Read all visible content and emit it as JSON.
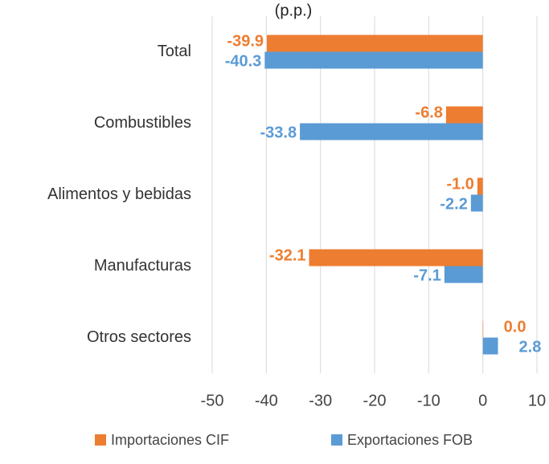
{
  "chart_data": {
    "type": "barh",
    "title": "(p.p.)",
    "categories": [
      "Total",
      "Combustibles",
      "Alimentos y bebidas",
      "Manufacturas",
      "Otros sectores"
    ],
    "series": [
      {
        "name": "Importaciones CIF",
        "color": "#ED7D31",
        "values": [
          -39.9,
          -6.8,
          -1.0,
          -32.1,
          0.0
        ],
        "value_labels": [
          "-39.9",
          "-6.8",
          "-1.0",
          "-32.1",
          "0.0"
        ]
      },
      {
        "name": "Exportaciones FOB",
        "color": "#5B9BD5",
        "values": [
          -40.3,
          -33.8,
          -2.2,
          -7.1,
          2.8
        ],
        "value_labels": [
          "-40.3",
          "-33.8",
          "-2.2",
          "-7.1",
          "2.8"
        ]
      }
    ],
    "xlim": [
      -50,
      10
    ],
    "xticks": [
      -50,
      -40,
      -30,
      -20,
      -10,
      0,
      10
    ],
    "grid": true
  }
}
